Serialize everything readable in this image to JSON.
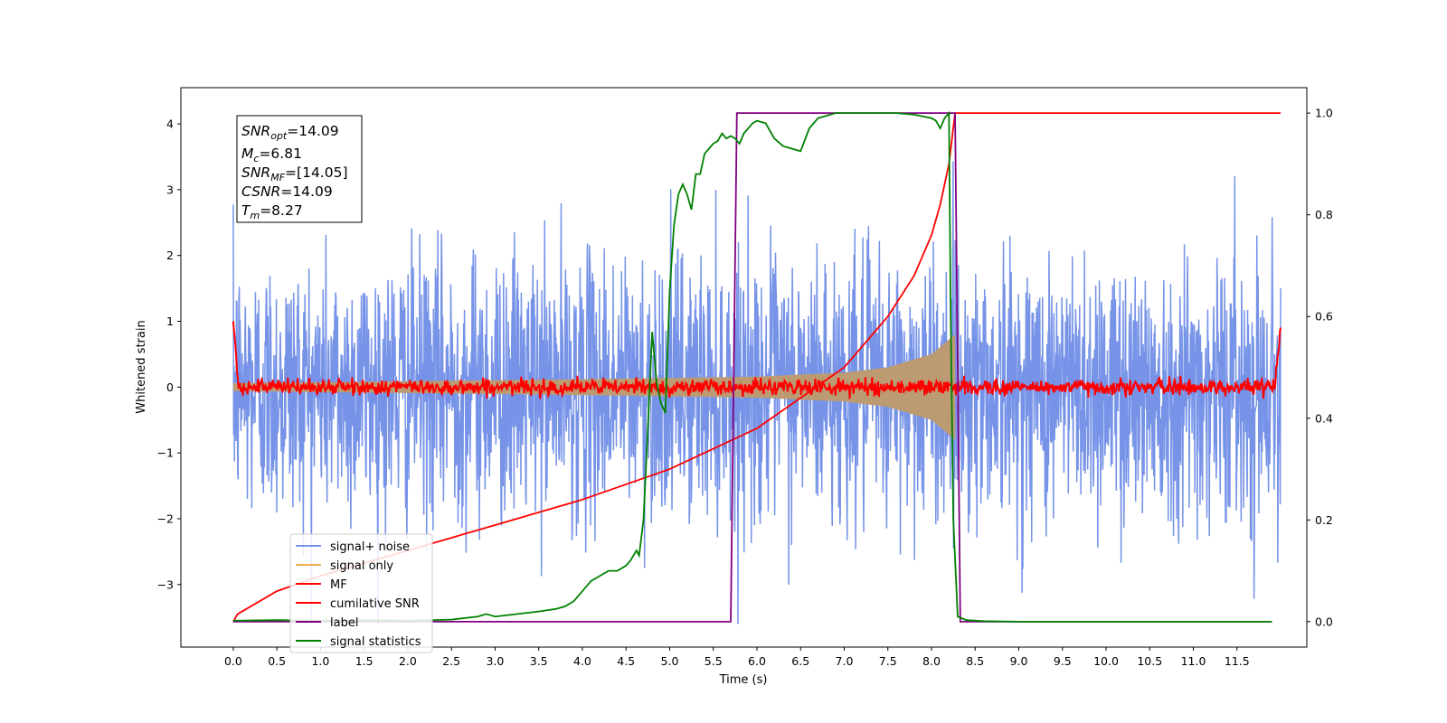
{
  "chart_data": {
    "type": "line",
    "title": "",
    "xlabel": "Time (s)",
    "ylabel": "Whitened strain",
    "y2label": "",
    "xlim": [
      -0.6,
      12.3
    ],
    "ylim": [
      -3.95,
      4.55
    ],
    "y2lim": [
      -0.05,
      1.05
    ],
    "grid": false,
    "legend_position": "lower-left",
    "x_ticks": [
      "0.0",
      "0.5",
      "1.0",
      "1.5",
      "2.0",
      "2.5",
      "3.0",
      "3.5",
      "4.0",
      "4.5",
      "5.0",
      "5.5",
      "6.0",
      "6.5",
      "7.0",
      "7.5",
      "8.0",
      "8.5",
      "9.0",
      "9.5",
      "10.0",
      "10.5",
      "11.0",
      "11.5"
    ],
    "y_ticks": [
      "−3",
      "−2",
      "−1",
      "0",
      "1",
      "2",
      "3",
      "4"
    ],
    "y2_ticks": [
      "0.0",
      "0.2",
      "0.4",
      "0.6",
      "0.8",
      "1.0"
    ],
    "info_box": {
      "snr_opt": {
        "base": "SNR",
        "sub": "opt",
        "value": "=14.09"
      },
      "mc": {
        "base": "M",
        "sub": "c",
        "value": "=6.81"
      },
      "snr_mf": {
        "base": "SNR",
        "sub": "MF",
        "value": "=[14.05]"
      },
      "csnr": {
        "base": "CSNR",
        "sub": "",
        "value": "=14.09"
      },
      "tm": {
        "base": "T",
        "sub": "m",
        "value": "=8.27"
      }
    },
    "series": [
      {
        "name": "signal+ noise",
        "color": "#7693e8",
        "axis": "left",
        "noise_sigma": 1.0,
        "x_range": [
          0.0,
          12.0
        ]
      },
      {
        "name": "signal only",
        "color": "#f0b050",
        "axis": "left",
        "envelope": [
          [
            0.0,
            0.06
          ],
          [
            4.0,
            0.12
          ],
          [
            6.0,
            0.16
          ],
          [
            7.0,
            0.22
          ],
          [
            7.5,
            0.3
          ],
          [
            8.0,
            0.5
          ],
          [
            8.27,
            0.8
          ]
        ]
      },
      {
        "name": "MF",
        "color": "#ff0000",
        "axis": "left",
        "noise_sigma": 0.06,
        "x_range": [
          0.0,
          12.0
        ]
      },
      {
        "name": "cumilative SNR",
        "color": "#ff0000",
        "axis": "right",
        "x": [
          0.0,
          0.05,
          0.5,
          1.0,
          2.0,
          3.0,
          4.0,
          5.0,
          5.5,
          6.0,
          6.5,
          7.0,
          7.5,
          7.8,
          8.0,
          8.1,
          8.2,
          8.27,
          12.0
        ],
        "y": [
          0.0,
          0.015,
          0.06,
          0.09,
          0.14,
          0.19,
          0.24,
          0.3,
          0.34,
          0.38,
          0.44,
          0.5,
          0.6,
          0.68,
          0.76,
          0.82,
          0.9,
          1.0,
          1.0
        ]
      },
      {
        "name": "label",
        "color": "#800080",
        "axis": "right",
        "x": [
          0.0,
          5.7,
          5.77,
          8.27,
          8.33,
          11.9
        ],
        "y": [
          0.0,
          0.0,
          1.0,
          1.0,
          0.0,
          0.0
        ]
      },
      {
        "name": "signal statistics",
        "color": "#008000",
        "axis": "right",
        "x": [
          0.0,
          0.5,
          1.0,
          1.5,
          2.0,
          2.5,
          2.8,
          2.9,
          3.0,
          3.1,
          3.5,
          3.7,
          3.8,
          3.9,
          4.0,
          4.1,
          4.2,
          4.3,
          4.4,
          4.5,
          4.55,
          4.62,
          4.65,
          4.7,
          4.75,
          4.8,
          4.85,
          4.9,
          4.95,
          5.0,
          5.05,
          5.1,
          5.15,
          5.2,
          5.25,
          5.3,
          5.35,
          5.4,
          5.45,
          5.5,
          5.55,
          5.6,
          5.65,
          5.7,
          5.75,
          5.8,
          5.85,
          5.9,
          5.95,
          6.0,
          6.1,
          6.2,
          6.3,
          6.4,
          6.5,
          6.6,
          6.7,
          6.8,
          6.9,
          7.0,
          7.2,
          7.4,
          7.6,
          7.8,
          8.0,
          8.05,
          8.1,
          8.15,
          8.2,
          8.22,
          8.25,
          8.3,
          8.4,
          8.6,
          9.0,
          10.0,
          11.0,
          11.9
        ],
        "y": [
          0.002,
          0.003,
          0.002,
          0.003,
          0.002,
          0.004,
          0.01,
          0.015,
          0.01,
          0.012,
          0.02,
          0.025,
          0.03,
          0.04,
          0.06,
          0.08,
          0.09,
          0.1,
          0.1,
          0.11,
          0.12,
          0.14,
          0.13,
          0.2,
          0.38,
          0.57,
          0.47,
          0.43,
          0.41,
          0.65,
          0.78,
          0.84,
          0.86,
          0.84,
          0.81,
          0.88,
          0.88,
          0.92,
          0.93,
          0.94,
          0.945,
          0.96,
          0.95,
          0.955,
          0.95,
          0.94,
          0.96,
          0.97,
          0.98,
          0.985,
          0.98,
          0.95,
          0.935,
          0.93,
          0.925,
          0.97,
          0.99,
          0.995,
          1.0,
          1.0,
          1.0,
          1.0,
          1.0,
          0.997,
          0.99,
          0.985,
          0.97,
          0.99,
          1.0,
          0.6,
          0.2,
          0.01,
          0.003,
          0.001,
          0.0,
          0.0,
          0.0,
          0.0
        ]
      }
    ]
  }
}
